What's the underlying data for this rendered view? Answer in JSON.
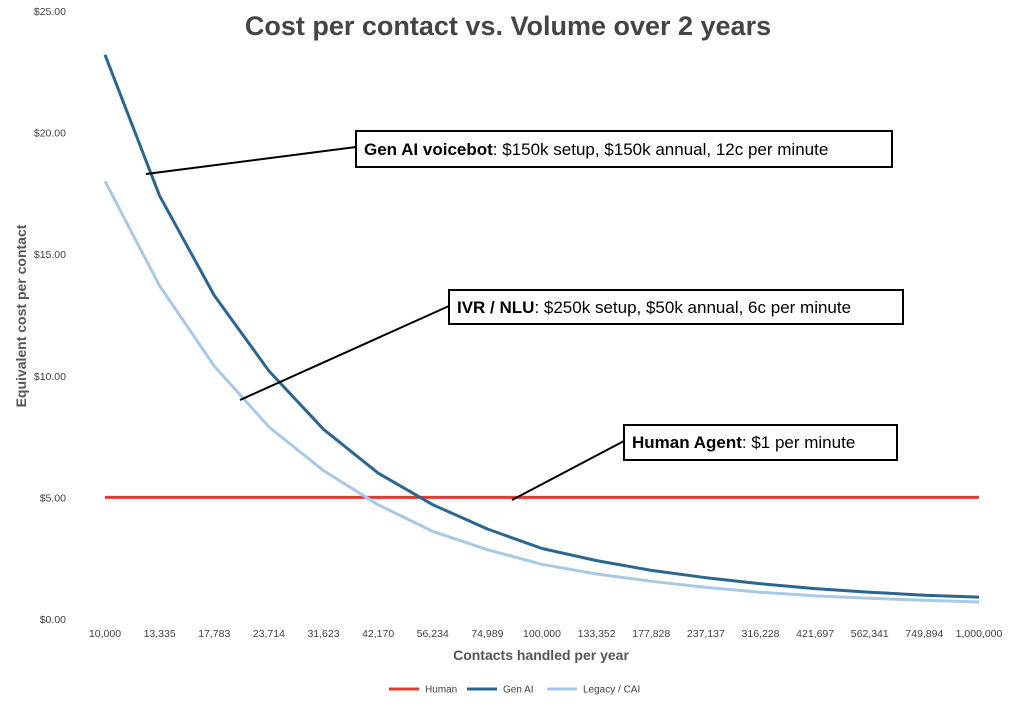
{
  "chart_data": {
    "type": "line",
    "title": "Cost per contact vs. Volume over 2 years",
    "xlabel": "Contacts handled per year",
    "ylabel": "Equivalent cost per contact",
    "ylim": [
      0,
      25
    ],
    "yticks": [
      "$0.00",
      "$5.00",
      "$10.00",
      "$15.00",
      "$20.00",
      "$25.00"
    ],
    "categories": [
      "10,000",
      "13,335",
      "17,783",
      "23,714",
      "31,623",
      "42,170",
      "56,234",
      "74,989",
      "100,000",
      "133,352",
      "177,828",
      "237,137",
      "316,228",
      "421,697",
      "562,341",
      "749,894",
      "1,000,000"
    ],
    "series": [
      {
        "name": "Human",
        "color": "#e03c31",
        "values": [
          5,
          5,
          5,
          5,
          5,
          5,
          5,
          5,
          5,
          5,
          5,
          5,
          5,
          5,
          5,
          5,
          5
        ]
      },
      {
        "name": "Gen AI",
        "color": "#2a6690",
        "values": [
          23.2,
          17.4,
          13.3,
          10.2,
          7.8,
          6.0,
          4.7,
          3.7,
          2.9,
          2.4,
          2.0,
          1.7,
          1.45,
          1.25,
          1.1,
          0.98,
          0.9
        ]
      },
      {
        "name": "Legacy / CAI",
        "color": "#a8c9e6",
        "values": [
          18.0,
          13.7,
          10.4,
          7.9,
          6.1,
          4.7,
          3.6,
          2.85,
          2.25,
          1.85,
          1.55,
          1.3,
          1.1,
          0.95,
          0.85,
          0.77,
          0.7
        ]
      }
    ],
    "grid": false,
    "legend_position": "bottom",
    "annotations": [
      {
        "bold": "Gen AI voicebot",
        "rest": ": $150k setup, $150k annual, 12c per minute"
      },
      {
        "bold": "IVR / NLU",
        "rest": ": $250k setup, $50k annual, 6c per minute"
      },
      {
        "bold": "Human Agent",
        "rest": ": $1 per minute"
      }
    ]
  }
}
